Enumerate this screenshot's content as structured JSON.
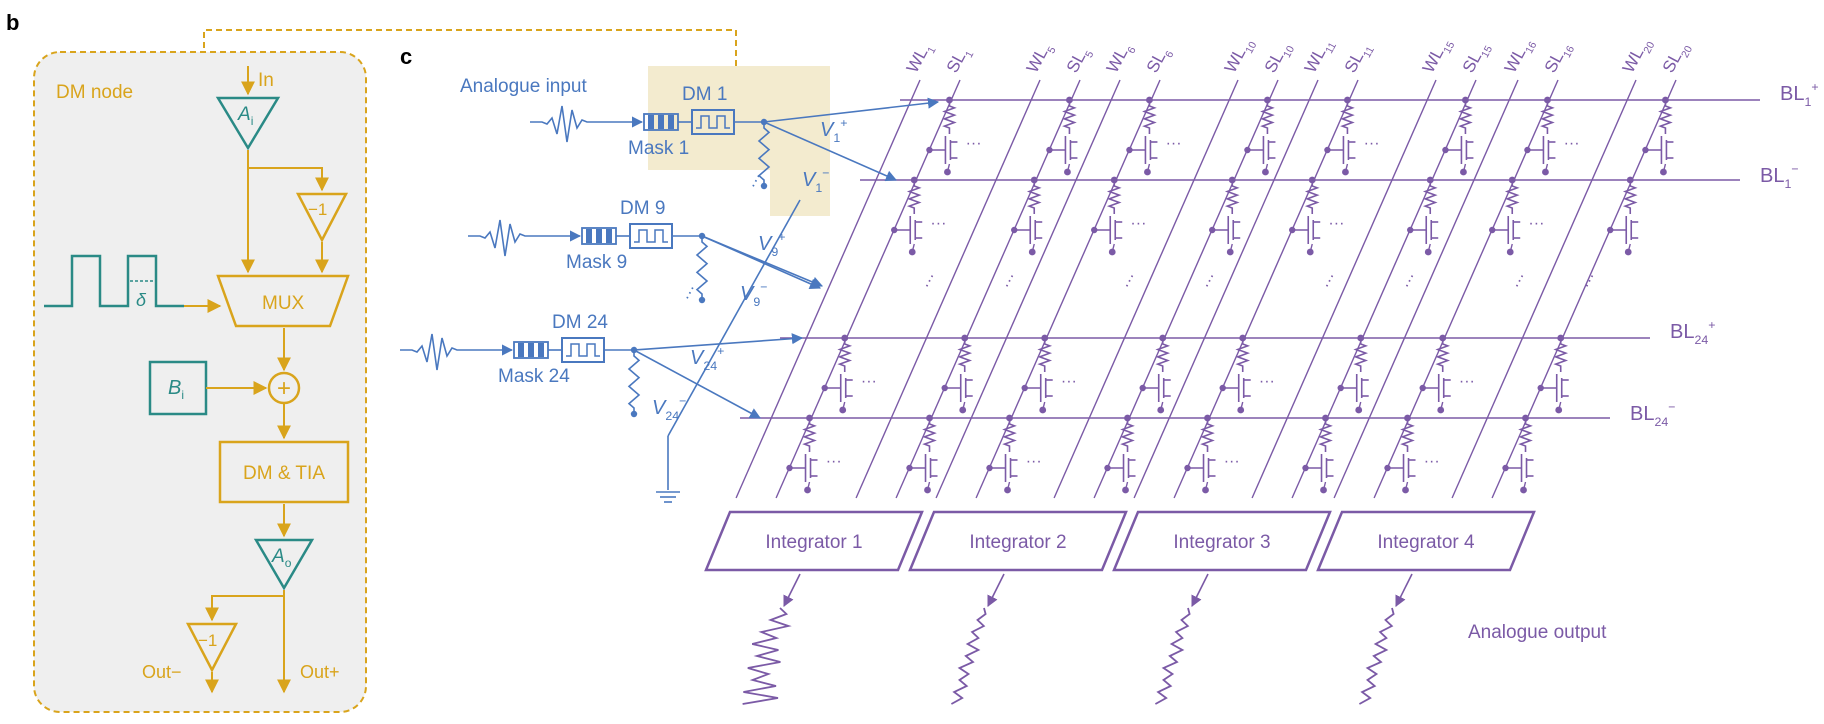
{
  "panel_b": {
    "label": "b",
    "node_title": "DM node",
    "input_label": "In",
    "amp_in": {
      "main": "A",
      "sub": "i"
    },
    "inverter": "−1",
    "pulse_delay": "δ",
    "mux": "MUX",
    "bias": {
      "main": "B",
      "sub": "i"
    },
    "sum": "+",
    "dm_tia": "DM & TIA",
    "amp_out": {
      "main": "A",
      "sub": "o"
    },
    "out_minus": "Out−",
    "out_plus": "Out+"
  },
  "panel_c": {
    "label": "c",
    "analogue_input": "Analogue input",
    "analogue_output": "Analogue output",
    "ellipsis": "···",
    "inputs": [
      {
        "dm": "DM 1",
        "mask": "Mask 1",
        "vp": {
          "main": "V",
          "sub": "1",
          "sup": "+"
        },
        "vm": {
          "main": "V",
          "sub": "1",
          "sup": "−"
        }
      },
      {
        "dm": "DM 9",
        "mask": "Mask 9",
        "vp": {
          "main": "V",
          "sub": "9",
          "sup": "+"
        },
        "vm": {
          "main": "V",
          "sub": "9",
          "sup": "−"
        }
      },
      {
        "dm": "DM 24",
        "mask": "Mask 24",
        "vp": {
          "main": "V",
          "sub": "24",
          "sup": "+"
        },
        "vm": {
          "main": "V",
          "sub": "24",
          "sup": "−"
        }
      }
    ],
    "bitlines": [
      {
        "main": "BL",
        "sub": "1",
        "sup": "+"
      },
      {
        "main": "BL",
        "sub": "1",
        "sup": "−"
      },
      {
        "main": "BL",
        "sub": "24",
        "sup": "+"
      },
      {
        "main": "BL",
        "sub": "24",
        "sup": "−"
      }
    ],
    "column_labels": [
      {
        "main": "WL",
        "sub": "1"
      },
      {
        "main": "SL",
        "sub": "1"
      },
      {
        "main": "WL",
        "sub": "5"
      },
      {
        "main": "SL",
        "sub": "5"
      },
      {
        "main": "WL",
        "sub": "6"
      },
      {
        "main": "SL",
        "sub": "6"
      },
      {
        "main": "WL",
        "sub": "10"
      },
      {
        "main": "SL",
        "sub": "10"
      },
      {
        "main": "WL",
        "sub": "11"
      },
      {
        "main": "SL",
        "sub": "11"
      },
      {
        "main": "WL",
        "sub": "15"
      },
      {
        "main": "SL",
        "sub": "15"
      },
      {
        "main": "WL",
        "sub": "16"
      },
      {
        "main": "SL",
        "sub": "16"
      },
      {
        "main": "WL",
        "sub": "20"
      },
      {
        "main": "SL",
        "sub": "20"
      }
    ],
    "integrators": [
      "Integrator 1",
      "Integrator 2",
      "Integrator 3",
      "Integrator 4"
    ]
  },
  "colors": {
    "gold": "#d9a41c",
    "teal": "#2a8a86",
    "blue": "#4a78bf",
    "purple": "#7b5aa6",
    "node_bg": "#efefef",
    "highlight": "#f3ebcf"
  }
}
